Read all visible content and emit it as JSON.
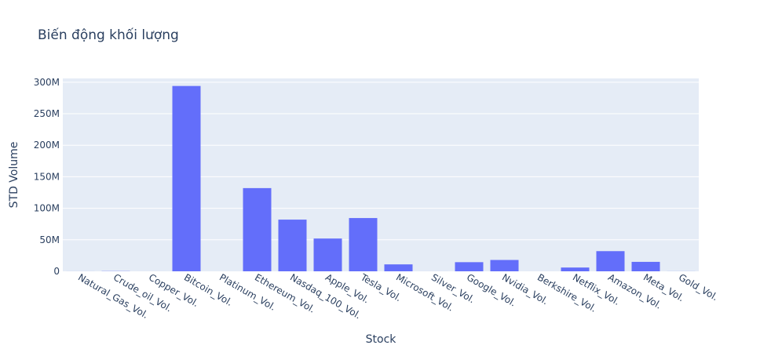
{
  "chart_data": {
    "type": "bar",
    "title": "Biến động khối lượng",
    "xlabel": "Stock",
    "ylabel": "STD Volume",
    "ylim": [
      0,
      306000000
    ],
    "yticks": [
      0,
      50000000,
      100000000,
      150000000,
      200000000,
      250000000,
      300000000
    ],
    "ytick_labels": [
      "0",
      "50M",
      "100M",
      "150M",
      "200M",
      "250M",
      "300M"
    ],
    "grid": true,
    "bar_color": "#636efa",
    "plot_bg": "#e5ecf6",
    "categories": [
      "Natural_Gas_Vol.",
      "Crude_oil_Vol.",
      "Copper_Vol.",
      "Bitcoin_Vol.",
      "Platinum_Vol.",
      "Ethereum_Vol.",
      "Nasdaq_100_Vol.",
      "Apple_Vol.",
      "Tesla_Vol.",
      "Microsoft_Vol.",
      "Silver_Vol.",
      "Google_Vol.",
      "Nvidia_Vol.",
      "Berkshire_Vol.",
      "Netflix_Vol.",
      "Amazon_Vol.",
      "Meta_Vol.",
      "Gold_Vol."
    ],
    "values": [
      60000,
      300000,
      20000,
      294000000,
      10000,
      132000000,
      82000000,
      52000000,
      84500000,
      11000000,
      30000,
      14500000,
      18000000,
      20000,
      6000000,
      32000000,
      15000000,
      100000
    ]
  }
}
